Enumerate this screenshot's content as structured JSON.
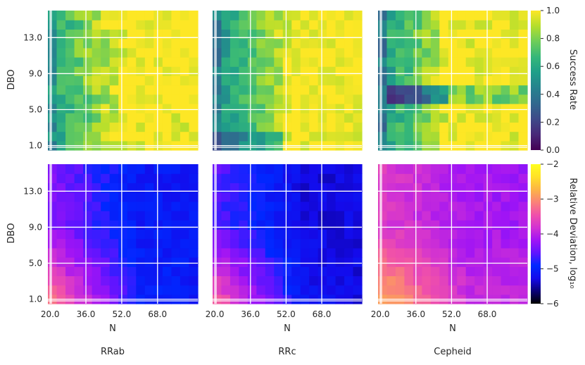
{
  "figure": {
    "column_titles": [
      "RRab",
      "RRc",
      "Cepheid"
    ]
  },
  "chart_data": [
    {
      "type": "heatmap",
      "row": "success",
      "panel": "RRab",
      "xlabel": "",
      "ylabel": "DBO",
      "x_ticks": [
        20.0,
        36.0,
        52.0,
        68.0
      ],
      "y_ticks": [
        1.0,
        5.0,
        9.0,
        13.0
      ],
      "x_range": [
        19,
        86
      ],
      "y_range": [
        0.5,
        16.0
      ],
      "grid": true,
      "trend": "success rate increases with N and DBO; lowest (~0.5-0.7) at small N, ~1.0 at large N",
      "value_range": [
        0.5,
        1.0
      ]
    },
    {
      "type": "heatmap",
      "row": "success",
      "panel": "RRc",
      "xlabel": "",
      "ylabel": "",
      "x_ticks": [
        20.0,
        36.0,
        52.0,
        68.0
      ],
      "y_ticks": [
        1.0,
        5.0,
        9.0,
        13.0
      ],
      "x_range": [
        19,
        86
      ],
      "y_range": [
        0.5,
        16.0
      ],
      "grid": true,
      "trend": "lowest (~0.4-0.6) at small N and small DBO, ~1.0 at large N",
      "value_range": [
        0.35,
        1.0
      ]
    },
    {
      "type": "heatmap",
      "row": "success",
      "panel": "Cepheid",
      "xlabel": "",
      "ylabel": "",
      "x_ticks": [
        20.0,
        36.0,
        52.0,
        68.0
      ],
      "y_ticks": [
        1.0,
        5.0,
        9.0,
        13.0
      ],
      "x_range": [
        19,
        86
      ],
      "y_range": [
        0.5,
        16.0
      ],
      "grid": true,
      "trend": "low band (~0.1-0.3) near DBO 6, low at small N, ~1.0 at large N",
      "value_range": [
        0.1,
        1.0
      ]
    },
    {
      "type": "heatmap",
      "row": "deviation",
      "panel": "RRab",
      "xlabel": "N",
      "ylabel": "DBO",
      "x_ticks": [
        20.0,
        36.0,
        52.0,
        68.0
      ],
      "y_ticks": [
        1.0,
        5.0,
        9.0,
        13.0
      ],
      "x_range": [
        19,
        86
      ],
      "y_range": [
        0.5,
        16.0
      ],
      "grid": true,
      "trend": "log10 relative deviation ~-3.3 at small N and small DBO, ~-5 at large N",
      "value_range": [
        -5.2,
        -3.2
      ]
    },
    {
      "type": "heatmap",
      "row": "deviation",
      "panel": "RRc",
      "xlabel": "N",
      "ylabel": "",
      "x_ticks": [
        20.0,
        36.0,
        52.0,
        68.0
      ],
      "y_ticks": [
        1.0,
        5.0,
        9.0,
        13.0
      ],
      "x_range": [
        19,
        86
      ],
      "y_range": [
        0.5,
        16.0
      ],
      "grid": true,
      "trend": "log10 relative deviation ~-3.5 at small N and small DBO, ~-5.3 at large N",
      "value_range": [
        -5.4,
        -3.4
      ]
    },
    {
      "type": "heatmap",
      "row": "deviation",
      "panel": "Cepheid",
      "xlabel": "N",
      "ylabel": "",
      "x_ticks": [
        20.0,
        36.0,
        52.0,
        68.0
      ],
      "y_ticks": [
        1.0,
        5.0,
        9.0,
        13.0
      ],
      "x_range": [
        19,
        86
      ],
      "y_range": [
        0.5,
        16.0
      ],
      "grid": true,
      "trend": "log10 relative deviation ~-2.8 at small N and small DBO, ~-4 at large N",
      "value_range": [
        -4.3,
        -2.7
      ]
    }
  ],
  "colorbars": [
    {
      "label": "Success Rate",
      "cmap": "viridis",
      "range": [
        0.0,
        1.0
      ],
      "ticks": [
        "0.0",
        "0.2",
        "0.4",
        "0.6",
        "0.8",
        "1.0"
      ]
    },
    {
      "label": "Relative Deviation, log₁₀",
      "cmap": "gnuplot2",
      "range": [
        -6,
        -2
      ],
      "ticks": [
        "−6",
        "−5",
        "−4",
        "−3",
        "−2"
      ]
    }
  ]
}
